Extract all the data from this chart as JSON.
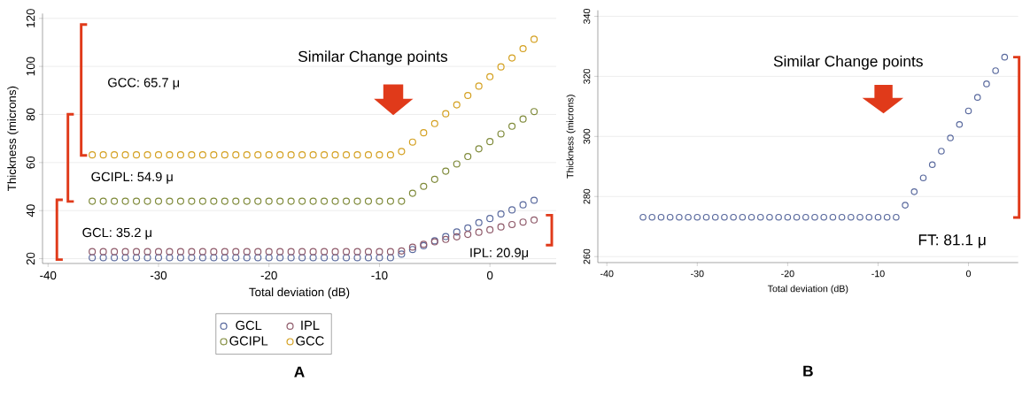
{
  "chart_data": [
    {
      "type": "scatter",
      "title": "A",
      "xlabel": "Total deviation (dB)",
      "ylabel": "Thickness (microns)",
      "x": [
        -36,
        -35,
        -34,
        -33,
        -32,
        -31,
        -30,
        -29,
        -28,
        -27,
        -26,
        -25,
        -24,
        -23,
        -22,
        -21,
        -20,
        -19,
        -18,
        -17,
        -16,
        -15,
        -14,
        -13,
        -12,
        -11,
        -10,
        -9,
        -8,
        -7,
        -6,
        -5,
        -4,
        -3,
        -2,
        -1,
        0,
        1,
        2,
        3,
        4
      ],
      "series": [
        {
          "name": "GCL",
          "color": "#5a6a9e",
          "values": [
            20.4,
            20.4,
            20.4,
            20.4,
            20.4,
            20.4,
            20.4,
            20.4,
            20.4,
            20.4,
            20.4,
            20.4,
            20.4,
            20.4,
            20.4,
            20.4,
            20.4,
            20.4,
            20.4,
            20.4,
            20.4,
            20.4,
            20.4,
            20.4,
            20.4,
            20.4,
            20.4,
            20.4,
            21.9,
            23.8,
            25.4,
            27.4,
            29.2,
            31.1,
            32.8,
            35.0,
            36.7,
            38.6,
            40.3,
            42.4,
            44.3
          ]
        },
        {
          "name": "IPL",
          "color": "#8f5a6a",
          "values": [
            22.9,
            22.9,
            22.9,
            22.9,
            22.9,
            22.9,
            22.9,
            22.9,
            22.9,
            22.9,
            22.9,
            22.9,
            22.9,
            22.9,
            22.9,
            22.9,
            22.9,
            22.9,
            22.9,
            22.9,
            22.9,
            22.9,
            22.9,
            22.9,
            22.9,
            22.9,
            22.9,
            22.9,
            23.2,
            24.8,
            26.0,
            27.0,
            28.0,
            29.1,
            30.1,
            31.0,
            32.0,
            33.2,
            34.2,
            35.2,
            36.1
          ]
        },
        {
          "name": "GCIPL",
          "color": "#7f8a3a",
          "values": [
            43.9,
            43.9,
            43.9,
            43.9,
            43.9,
            43.9,
            43.9,
            43.9,
            43.9,
            43.9,
            43.9,
            43.9,
            43.9,
            43.9,
            43.9,
            43.9,
            43.9,
            43.9,
            43.9,
            43.9,
            43.9,
            43.9,
            43.9,
            43.9,
            43.9,
            43.9,
            43.9,
            43.9,
            43.9,
            47.2,
            50.1,
            53.0,
            56.4,
            59.4,
            62.5,
            65.7,
            68.7,
            71.9,
            75.1,
            78.1,
            81.2
          ]
        },
        {
          "name": "GCC",
          "color": "#d4a020",
          "values": [
            63.2,
            63.2,
            63.2,
            63.2,
            63.2,
            63.2,
            63.2,
            63.2,
            63.2,
            63.2,
            63.2,
            63.2,
            63.2,
            63.2,
            63.2,
            63.2,
            63.2,
            63.2,
            63.2,
            63.2,
            63.2,
            63.2,
            63.2,
            63.2,
            63.2,
            63.2,
            63.2,
            63.2,
            64.6,
            68.5,
            72.4,
            76.2,
            80.3,
            84.0,
            87.9,
            91.8,
            95.7,
            99.8,
            103.5,
            107.4,
            111.3
          ]
        }
      ],
      "xlim": [
        -40.5,
        6
      ],
      "ylim": [
        18,
        122
      ],
      "xticks": [
        -40,
        -30,
        -20,
        -10,
        0
      ],
      "yticks": [
        20,
        40,
        60,
        80,
        100,
        120
      ],
      "grid": "y",
      "legend": "bottom",
      "marker": "circle",
      "annotations": [
        "Similar Change points",
        "GCC: 65.7 μ",
        "GCIPL: 54.9 μ",
        "GCL: 35.2 μ",
        "IPL: 20.9μ"
      ]
    },
    {
      "type": "scatter",
      "title": "B",
      "xlabel": "Total deviation (dB)",
      "ylabel": "Thickness (microns)",
      "x": [
        -36,
        -35,
        -34,
        -33,
        -32,
        -31,
        -30,
        -29,
        -28,
        -27,
        -26,
        -25,
        -24,
        -23,
        -22,
        -21,
        -20,
        -19,
        -18,
        -17,
        -16,
        -15,
        -14,
        -13,
        -12,
        -11,
        -10,
        -9,
        -8,
        -7,
        -6,
        -5,
        -4,
        -3,
        -2,
        -1,
        0,
        1,
        2,
        3,
        4
      ],
      "series": [
        {
          "color": "#5a6a9e",
          "values": [
            273.1,
            273.1,
            273.1,
            273.1,
            273.1,
            273.1,
            273.1,
            273.1,
            273.1,
            273.1,
            273.1,
            273.1,
            273.1,
            273.1,
            273.1,
            273.1,
            273.1,
            273.1,
            273.1,
            273.1,
            273.1,
            273.1,
            273.1,
            273.1,
            273.1,
            273.1,
            273.1,
            273.1,
            273.1,
            277.1,
            281.6,
            286.2,
            290.6,
            295.1,
            299.5,
            304.0,
            308.5,
            313.0,
            317.5,
            321.9,
            326.4
          ]
        }
      ],
      "xlim": [
        -41,
        5.5
      ],
      "ylim": [
        258,
        342
      ],
      "xticks": [
        -40,
        -30,
        -20,
        -10,
        0
      ],
      "yticks": [
        260,
        280,
        300,
        320,
        340
      ],
      "grid": "y",
      "marker": "circle",
      "annotations": [
        "Similar Change points",
        "FT: 81.1 μ"
      ]
    }
  ]
}
